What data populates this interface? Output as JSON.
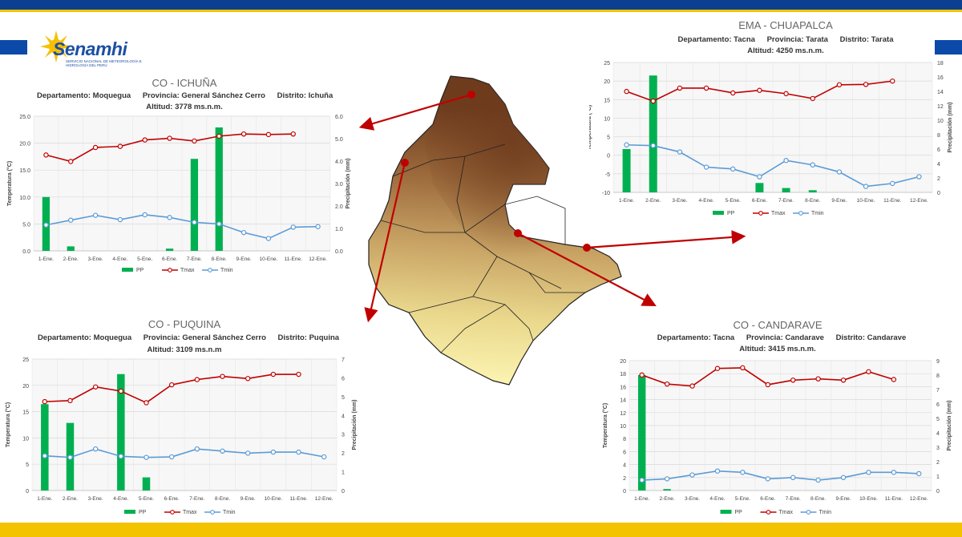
{
  "logo": {
    "name": "Senamhi",
    "subtitle": "SERVICIO NACIONAL DE METEOROLOGÍA E HIDROLOGÍA DEL PERÚ"
  },
  "colors": {
    "pp": "#00b050",
    "tmax": "#c00000",
    "tmin": "#5b9bd5",
    "map_low": "#fdf6b5",
    "map_high": "#6e3b1d",
    "arrow": "#c00000"
  },
  "legend": {
    "pp": "PP",
    "tmax": "Tmax",
    "tmin": "Tmin"
  },
  "axes": {
    "ylabel_left": "Temperatura (°C)",
    "ylabel_right": "Precipitación (mm)"
  },
  "stations": {
    "ichuna": {
      "title": "CO - ICHUÑA",
      "departamento": "Departamento: Moquegua",
      "provincia": "Provincia: General Sánchez Cerro",
      "distrito": "Distrito: Ichuña",
      "altitud": "Altitud: 3778 ms.n.m."
    },
    "chuapalca": {
      "title": "EMA - CHUAPALCA",
      "departamento": "Departamento: Tacna",
      "provincia": "Provincia: Tarata",
      "distrito": "Distrito: Tarata",
      "altitud": "Altitud: 4250 ms.n.m."
    },
    "puquina": {
      "title": "CO - PUQUINA",
      "departamento": "Departamento: Moquegua",
      "provincia": "Provincia: General Sánchez Cerro",
      "distrito": "Distrito: Puquina",
      "altitud": "Altitud: 3109 ms.n.m"
    },
    "candarave": {
      "title": "CO - CANDARAVE",
      "departamento": "Departamento: Tacna",
      "provincia": "Provincia: Candarave",
      "distrito": "Distrito: Candarave",
      "altitud": "Altitud: 3415 ms.n.m."
    }
  },
  "chart_data": [
    {
      "id": "ichuna",
      "type": "bar+line",
      "categories": [
        "1-Ene.",
        "2-Ene.",
        "3-Ene.",
        "4-Ene.",
        "5-Ene.",
        "6-Ene.",
        "7-Ene.",
        "8-Ene.",
        "9-Ene.",
        "10-Ene.",
        "11-Ene.",
        "12-Ene."
      ],
      "ylim_left": [
        0,
        25
      ],
      "yticks_left": [
        "0.0",
        "5.0",
        "10.0",
        "15.0",
        "20.0",
        "25.0"
      ],
      "ylim_right": [
        0,
        6
      ],
      "yticks_right": [
        "0.0",
        "1.0",
        "2.0",
        "3.0",
        "4.0",
        "5.0",
        "6.0"
      ],
      "pp": [
        2.4,
        0.2,
        0,
        0,
        0,
        0.1,
        4.1,
        5.5,
        0,
        0,
        0,
        0
      ],
      "tmax": [
        17.8,
        16.6,
        19.2,
        19.4,
        20.6,
        20.9,
        20.4,
        21.3,
        21.7,
        21.6,
        21.7,
        null
      ],
      "tmin": [
        4.8,
        5.7,
        6.6,
        5.8,
        6.7,
        6.2,
        5.3,
        5.0,
        3.4,
        2.3,
        4.4,
        4.5
      ],
      "grid": true,
      "legend": "bottom"
    },
    {
      "id": "chuapalca",
      "type": "bar+line",
      "categories": [
        "1-Ene.",
        "2-Ene.",
        "3-Ene.",
        "4-Ene.",
        "5-Ene.",
        "6-Ene.",
        "7-Ene.",
        "8-Ene.",
        "9-Ene.",
        "10-Ene.",
        "11-Ene.",
        "12-Ene."
      ],
      "ylim_left": [
        -10,
        25
      ],
      "yticks_left": [
        "-10",
        "-5",
        "0",
        "5",
        "10",
        "15",
        "20",
        "25"
      ],
      "ylim_right": [
        0,
        18
      ],
      "yticks_right": [
        "0",
        "2",
        "4",
        "6",
        "8",
        "10",
        "12",
        "14",
        "16",
        "18"
      ],
      "pp": [
        6.0,
        16.2,
        0,
        0,
        0,
        1.3,
        0.6,
        0.3,
        0,
        0,
        0,
        0
      ],
      "tmax": [
        17.2,
        14.6,
        18.1,
        18.1,
        16.8,
        17.5,
        16.6,
        15.3,
        19.0,
        19.1,
        20.0,
        null
      ],
      "tmin": [
        2.8,
        2.6,
        0.9,
        -3.2,
        -3.7,
        -5.8,
        -1.4,
        -2.6,
        -4.5,
        -8.4,
        -7.6,
        -5.8
      ],
      "grid": true,
      "legend": "bottom"
    },
    {
      "id": "puquina",
      "type": "bar+line",
      "categories": [
        "1-Ene.",
        "2-Ene.",
        "3-Ene.",
        "4-Ene.",
        "5-Ene.",
        "6-Ene.",
        "7-Ene.",
        "8-Ene.",
        "9-Ene.",
        "10-Ene.",
        "11-Ene.",
        "12-Ene."
      ],
      "ylim_left": [
        0,
        25
      ],
      "yticks_left": [
        "0",
        "5",
        "10",
        "15",
        "20",
        "25"
      ],
      "ylim_right": [
        0,
        7
      ],
      "yticks_right": [
        "0",
        "1",
        "2",
        "3",
        "4",
        "5",
        "6",
        "7"
      ],
      "pp": [
        4.6,
        3.6,
        0,
        6.2,
        0.7,
        0,
        0,
        0,
        0,
        0,
        0,
        0
      ],
      "tmax": [
        16.9,
        17.1,
        19.7,
        18.9,
        16.7,
        20.1,
        21.1,
        21.7,
        21.3,
        22.1,
        22.1,
        null
      ],
      "tmin": [
        6.6,
        6.3,
        7.9,
        6.5,
        6.3,
        6.4,
        7.9,
        7.5,
        7.1,
        7.3,
        7.3,
        6.4
      ],
      "grid": true,
      "legend": "bottom"
    },
    {
      "id": "candarave",
      "type": "bar+line",
      "categories": [
        "1-Ene.",
        "2-Ene.",
        "3-Ene.",
        "4-Ene.",
        "5-Ene.",
        "6-Ene.",
        "7-Ene.",
        "8-Ene.",
        "9-Ene.",
        "10-Ene.",
        "11-Ene.",
        "12-Ene."
      ],
      "ylim_left": [
        0,
        20
      ],
      "yticks_left": [
        "0",
        "2",
        "4",
        "6",
        "8",
        "10",
        "12",
        "14",
        "16",
        "18",
        "20"
      ],
      "ylim_right": [
        0,
        9
      ],
      "yticks_right": [
        "0",
        "1",
        "2",
        "3",
        "4",
        "5",
        "6",
        "7",
        "8",
        "9"
      ],
      "pp": [
        8.0,
        0.1,
        0,
        0,
        0,
        0,
        0,
        0,
        0,
        0,
        0,
        0
      ],
      "tmax": [
        17.8,
        16.4,
        16.1,
        18.8,
        18.9,
        16.3,
        17.0,
        17.2,
        17.0,
        18.3,
        17.1,
        null
      ],
      "tmin": [
        1.6,
        1.8,
        2.4,
        3.0,
        2.8,
        1.8,
        2.0,
        1.6,
        2.0,
        2.8,
        2.8,
        2.6
      ],
      "grid": true,
      "legend": "bottom"
    }
  ]
}
